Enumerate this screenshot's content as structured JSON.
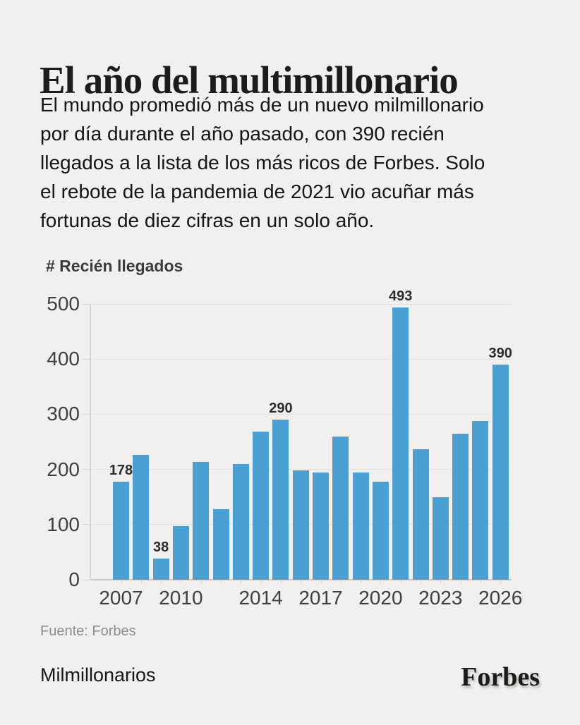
{
  "page": {
    "title": "El año del multimillonario",
    "intro_lines": [
      "El mundo promedió más de un nuevo milmillonario",
      "por día durante el año pasado, con 390 recién",
      "llegados a la lista de los más ricos de Forbes. Solo",
      "el rebote de la pandemia de 2021 vio acuñar más",
      "fortunas de diez cifras en un solo año."
    ],
    "source": "Fuente: Forbes",
    "category": "Milmillonarios",
    "brand": "Forbes"
  },
  "chart_data": {
    "type": "bar",
    "title": "# Recién llegados",
    "xlabel": "",
    "ylabel": "# Recién llegados",
    "categories": [
      "2007",
      "2008",
      "2009",
      "2010",
      "2011",
      "2012",
      "2013",
      "2014",
      "2015",
      "2016",
      "2017",
      "2018",
      "2019",
      "2020",
      "2021",
      "2022",
      "2023",
      "2024",
      "2025",
      "2026"
    ],
    "values": [
      178,
      226,
      38,
      97,
      214,
      128,
      210,
      268,
      290,
      198,
      195,
      259,
      195,
      178,
      493,
      236,
      150,
      265,
      288,
      390
    ],
    "labeled_categories": [
      "2007",
      "2009",
      "2015",
      "2021",
      "2026"
    ],
    "x_tick_labels": [
      "2007",
      "2010",
      "2014",
      "2017",
      "2020",
      "2023",
      "2026"
    ],
    "x_tick_indices": [
      0,
      3,
      7,
      10,
      13,
      16,
      19
    ],
    "y_ticks": [
      0,
      100,
      200,
      300,
      400,
      500
    ],
    "ylim": [
      0,
      500
    ],
    "grid": "horizontal",
    "legend": "none",
    "bar_color": "#4aa0d3",
    "background_color": "#f1f0ee"
  }
}
